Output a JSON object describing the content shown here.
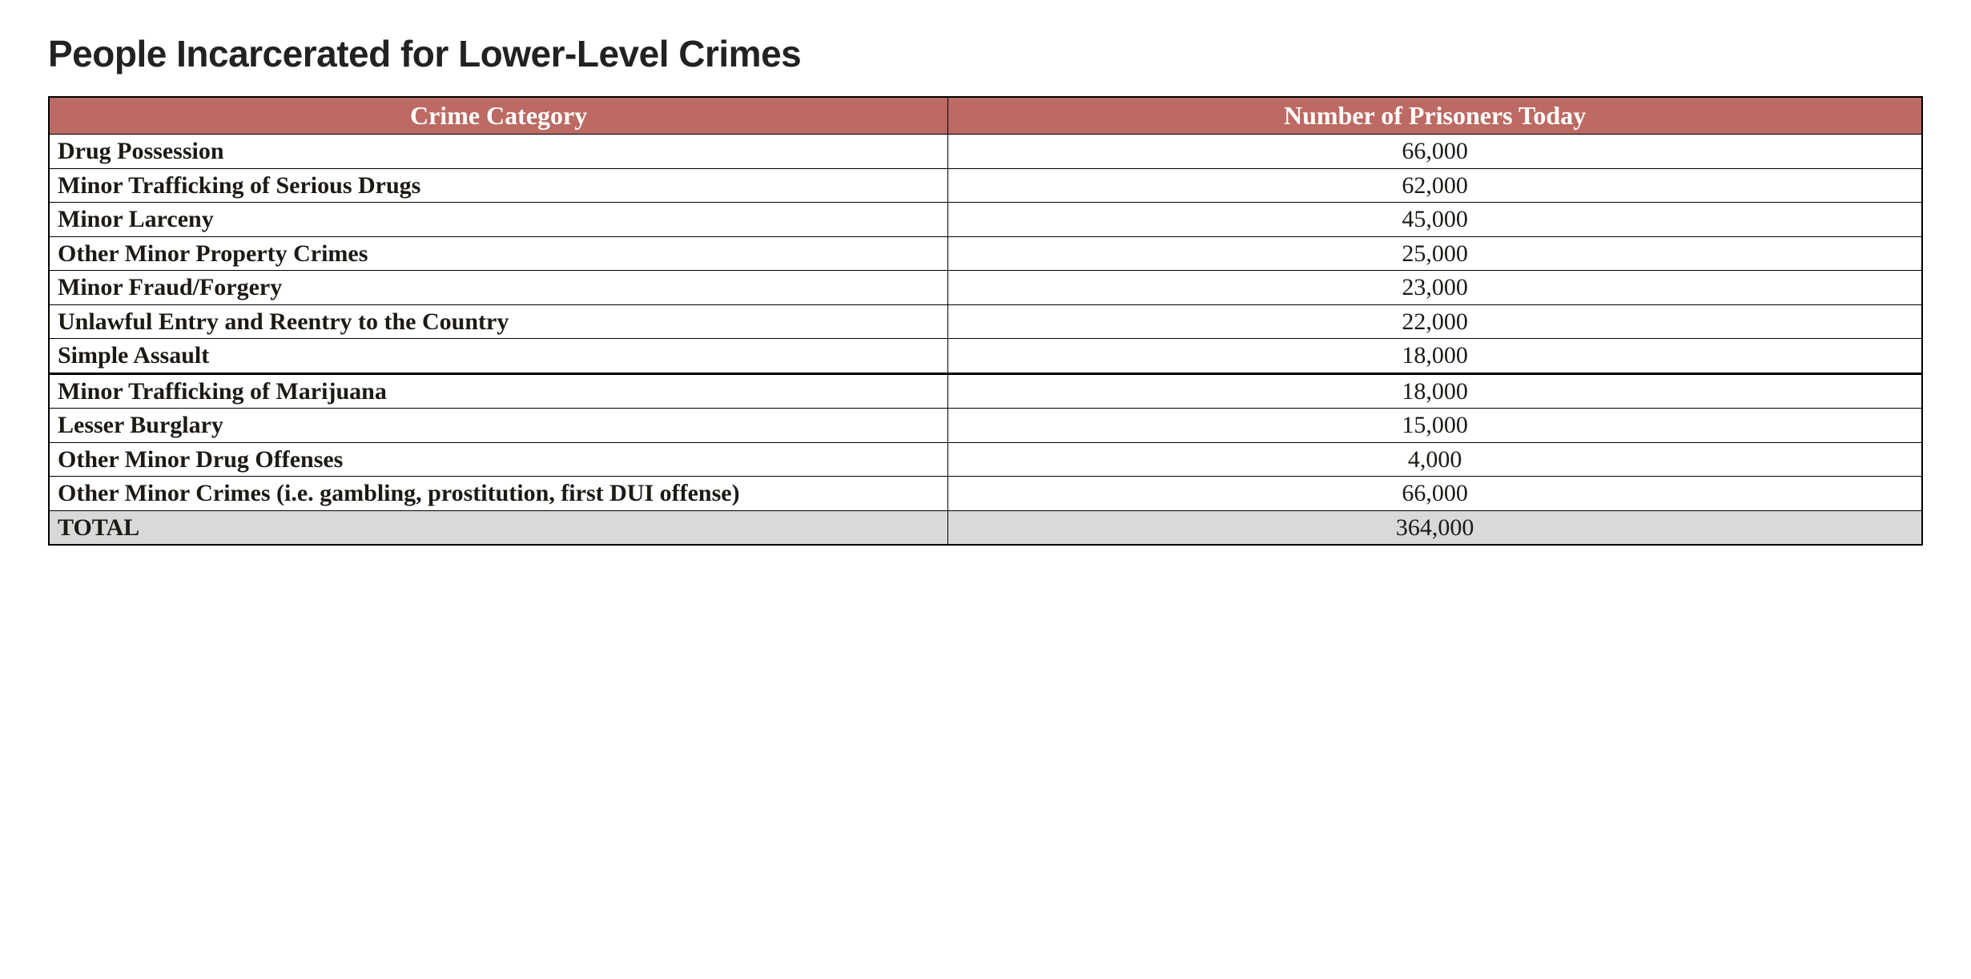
{
  "title": "People Incarcerated for Lower-Level Crimes",
  "table": {
    "header_bg": "#bc6a63",
    "header_fg": "#ffffff",
    "border_color": "#000000",
    "total_bg": "#d9d9d9",
    "columns": [
      "Crime Category",
      "Number of Prisoners Today"
    ],
    "rows": [
      {
        "category": "Drug Possession",
        "value": "66,000"
      },
      {
        "category": "Minor Trafficking of Serious Drugs",
        "value": "62,000"
      },
      {
        "category": "Minor Larceny",
        "value": "45,000"
      },
      {
        "category": "Other Minor Property Crimes",
        "value": "25,000"
      },
      {
        "category": "Minor Fraud/Forgery",
        "value": "23,000"
      },
      {
        "category": "Unlawful Entry and Reentry to the Country",
        "value": "22,000"
      },
      {
        "category": "Simple Assault",
        "value": "18,000"
      },
      {
        "category": "Minor Trafficking of Marijuana",
        "value": "18,000",
        "gap_above": true
      },
      {
        "category": "Lesser Burglary",
        "value": "15,000"
      },
      {
        "category": "Other Minor Drug Offenses",
        "value": "4,000"
      },
      {
        "category": "Other Minor Crimes (i.e. gambling, prostitution, first DUI offense)",
        "value": "66,000"
      }
    ],
    "total": {
      "label": "TOTAL",
      "value": "364,000"
    }
  }
}
